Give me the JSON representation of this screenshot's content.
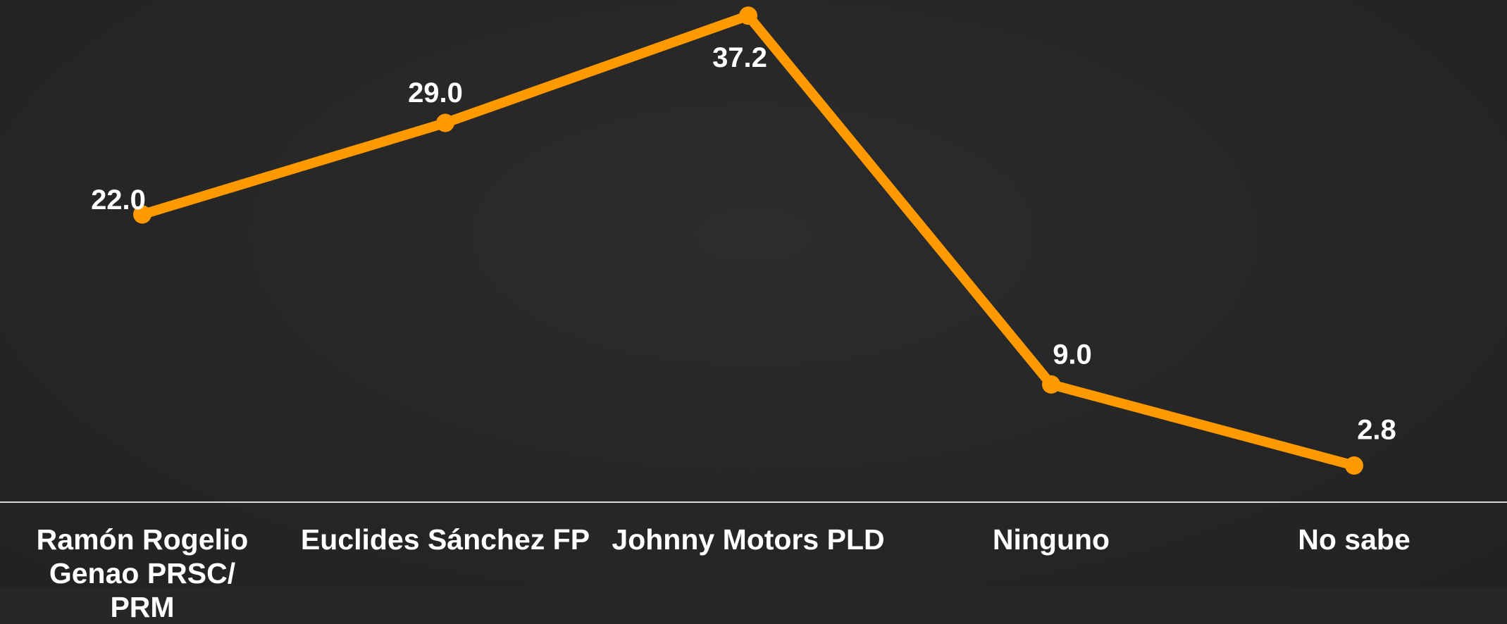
{
  "chart_data": {
    "type": "line",
    "categories": [
      "Ramón Rogelio Genao PRSC/ PRM",
      "Euclides Sánchez FP",
      "Johnny Motors PLD",
      "Ninguno",
      "No sabe"
    ],
    "values": [
      22.0,
      29.0,
      37.2,
      9.0,
      2.8
    ],
    "value_labels": [
      "22.0",
      "29.0",
      "37.2",
      "9.0",
      "2.8"
    ],
    "color": "#ff9900",
    "ylim": [
      0,
      38.4
    ]
  }
}
